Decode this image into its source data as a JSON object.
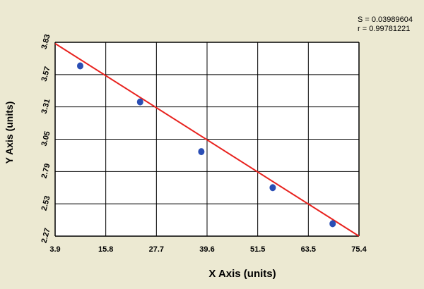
{
  "stats": {
    "s_text": "S = 0.03989604",
    "r_text": "r = 0.99781221"
  },
  "chart_data": {
    "type": "scatter",
    "xlabel": "X Axis (units)",
    "ylabel": "Y Axis (units)",
    "xlim": [
      3.9,
      75.4
    ],
    "ylim": [
      2.27,
      3.83
    ],
    "x_ticks": [
      "3.9",
      "15.8",
      "27.7",
      "39.6",
      "51.5",
      "63.5",
      "75.4"
    ],
    "y_ticks": [
      "3.83",
      "3.57",
      "3.31",
      "3.05",
      "2.79",
      "2.53",
      "2.27"
    ],
    "grid": true,
    "points": [
      {
        "x": 9.8,
        "y": 3.64
      },
      {
        "x": 23.9,
        "y": 3.35
      },
      {
        "x": 38.3,
        "y": 2.95
      },
      {
        "x": 55.1,
        "y": 2.66
      },
      {
        "x": 69.2,
        "y": 2.37
      }
    ],
    "fit_line": {
      "x": [
        3.9,
        75.4
      ],
      "y": [
        3.82,
        2.27
      ]
    },
    "colors": {
      "points": "#2a4eb5",
      "fit_line": "#e8231f",
      "grid": "#000000",
      "plot_bg": "#ffffff"
    }
  }
}
